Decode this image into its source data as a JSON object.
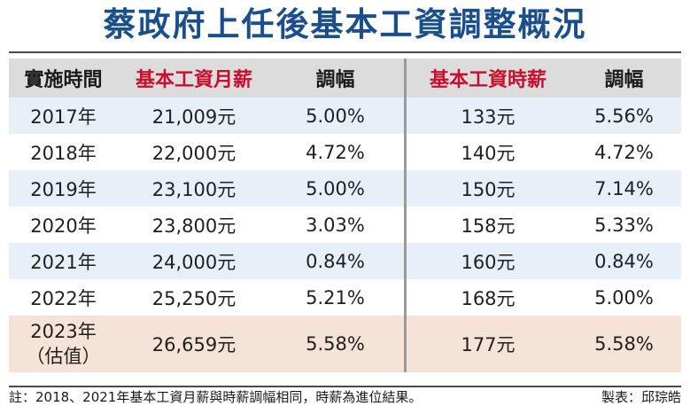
{
  "title": "蔡政府上任後基本工資調整概況",
  "headers": [
    "實施時間",
    "基本工資月薪",
    "調幅",
    "基本工資時薪",
    "調幅"
  ],
  "rows": [
    {
      "year": "2017年",
      "monthly": "21,009元",
      "monthly_rate": "5.00%",
      "hourly": "133元",
      "hourly_rate": "5.56%"
    },
    {
      "year": "2018年",
      "monthly": "22,000元",
      "monthly_rate": "4.72%",
      "hourly": "140元",
      "hourly_rate": "4.72%"
    },
    {
      "year": "2019年",
      "monthly": "23,100元",
      "monthly_rate": "5.00%",
      "hourly": "150元",
      "hourly_rate": "7.14%"
    },
    {
      "year": "2020年",
      "monthly": "23,800元",
      "monthly_rate": "3.03%",
      "hourly": "158元",
      "hourly_rate": "5.33%"
    },
    {
      "year": "2021年",
      "monthly": "24,000元",
      "monthly_rate": "0.84%",
      "hourly": "160元",
      "hourly_rate": "0.84%"
    },
    {
      "year": "2022年",
      "monthly": "25,250元",
      "monthly_rate": "5.21%",
      "hourly": "168元",
      "hourly_rate": "5.00%"
    }
  ],
  "last_row": {
    "year": "2023年",
    "year_note": "（估值）",
    "monthly": "26,659元",
    "monthly_rate": "5.58%",
    "hourly": "177元",
    "hourly_rate": "5.58%"
  },
  "footer": {
    "note": "註：2018、2021年基本工資月薪與時薪調幅相同，時薪為進位結果。",
    "credit": "製表：邱琮皓"
  },
  "colors": {
    "title": "#1b4f8c",
    "header_highlight": "#c8102e",
    "row_blue": "#e7f0f8",
    "row_last": "#f5e3d8",
    "header_bg": "#dcdcdc"
  }
}
